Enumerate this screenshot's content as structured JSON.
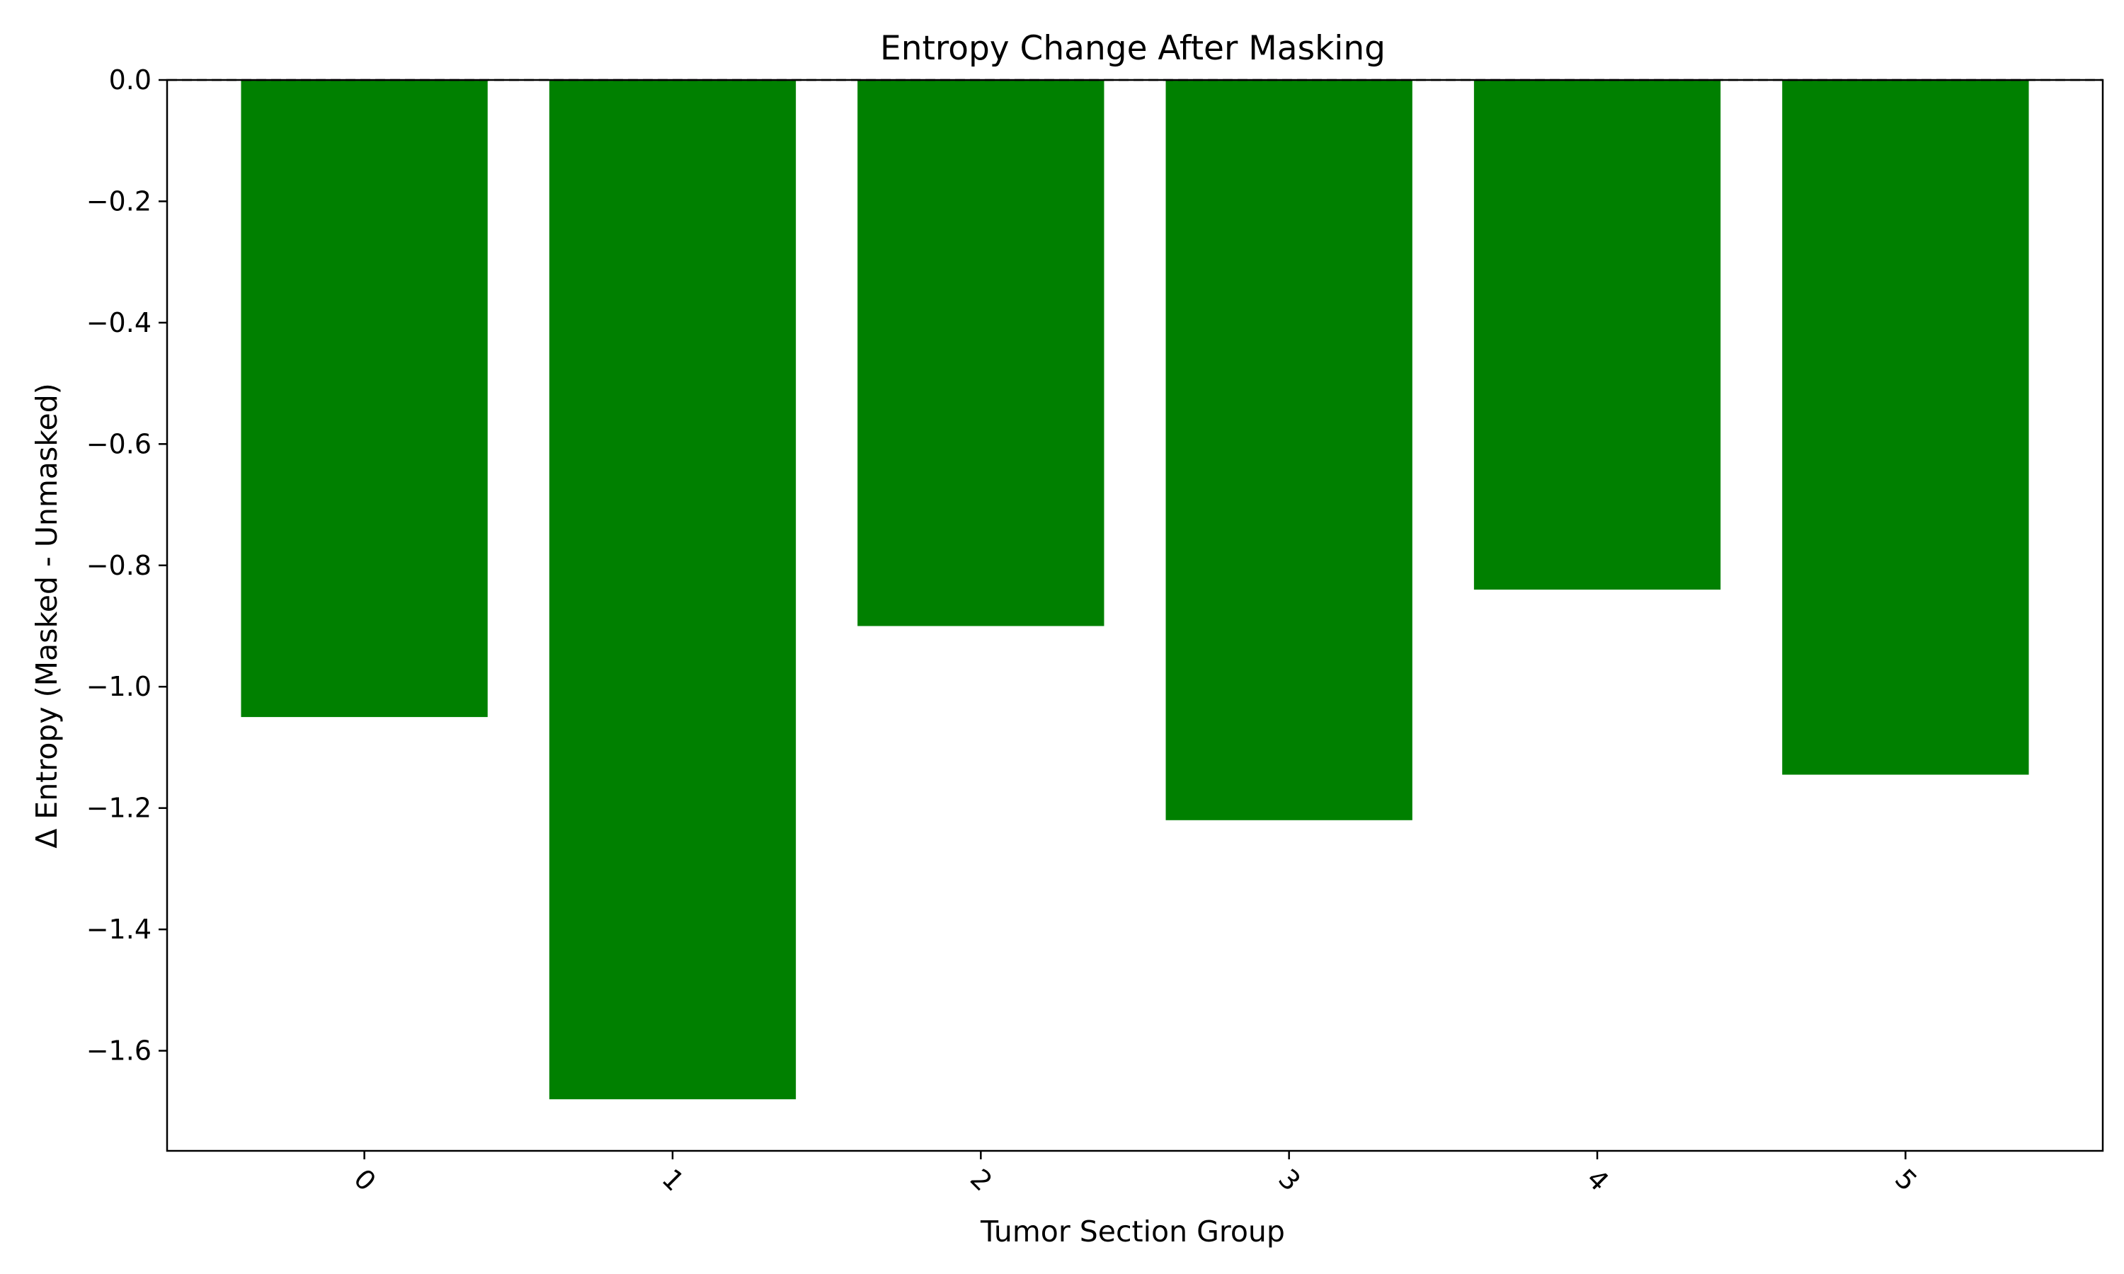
{
  "chart_data": {
    "type": "bar",
    "title": "Entropy Change After Masking",
    "xlabel": "Tumor Section Group",
    "ylabel": "Δ Entropy (Masked - Unmasked)",
    "categories": [
      "0",
      "1",
      "2",
      "3",
      "4",
      "5"
    ],
    "values": [
      -1.05,
      -1.68,
      -0.9,
      -1.22,
      -0.84,
      -1.145
    ],
    "ylim": [
      -1.765,
      0.0
    ],
    "yticks": [
      0.0,
      -0.2,
      -0.4,
      -0.6,
      -0.8,
      -1.0,
      -1.2,
      -1.4,
      -1.6
    ],
    "ytick_labels": [
      "0.0",
      "−0.2",
      "−0.4",
      "−0.6",
      "−0.8",
      "−1.0",
      "−1.2",
      "−1.4",
      "−1.6"
    ],
    "xtick_rotation_deg": 45,
    "bar_color": "#008000",
    "reference_line": {
      "y": 0.0,
      "style": "dashed",
      "color": "#000000"
    },
    "grid": false,
    "legend": false
  }
}
